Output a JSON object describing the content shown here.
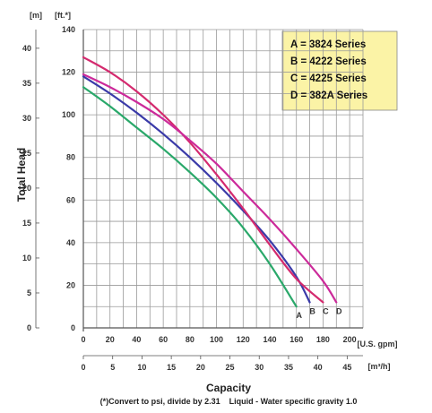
{
  "chart_data": {
    "type": "line",
    "title": "",
    "ylabel": "Total Head",
    "xlabel": "Capacity",
    "footnote": "(*)Convert to psi, divide by 2.31    Liquid - Water specific gravity 1.0",
    "y_unit_left": "[m]",
    "y_unit_right": "[ft.*]",
    "x_unit_primary": "[U.S. gpm]",
    "x_unit_secondary": "[m³/h]",
    "xlim": [
      0,
      210
    ],
    "ylim": [
      0,
      140
    ],
    "x_ticks_gpm": [
      "0",
      "20",
      "40",
      "60",
      "80",
      "100",
      "120",
      "140",
      "160",
      "180",
      "200"
    ],
    "x_ticks_m3h": [
      "0",
      "5",
      "10",
      "15",
      "20",
      "25",
      "30",
      "35",
      "40",
      "45"
    ],
    "y_ticks_ft": [
      "0",
      "20",
      "40",
      "60",
      "80",
      "100",
      "120",
      "140"
    ],
    "y_ticks_m": [
      "0",
      "5",
      "10",
      "15",
      "20",
      "25",
      "30",
      "35",
      "40"
    ],
    "grid": true,
    "legend_position": "top-right",
    "legend": [
      "A = 3824 Series",
      "B = 4222 Series",
      "C = 4225 Series",
      "D = 382A Series"
    ],
    "series": [
      {
        "name": "A",
        "color": "#2aa86a",
        "x": [
          0,
          20,
          40,
          60,
          80,
          100,
          120,
          140,
          160
        ],
        "y": [
          113,
          104,
          94,
          84,
          73,
          61,
          47,
          30,
          10
        ]
      },
      {
        "name": "B",
        "color": "#3a3aa8",
        "x": [
          0,
          20,
          40,
          60,
          80,
          100,
          120,
          140,
          160,
          170
        ],
        "y": [
          118,
          110,
          101,
          91,
          80,
          68,
          55,
          41,
          24,
          12
        ]
      },
      {
        "name": "C",
        "color": "#d42a6e",
        "x": [
          0,
          20,
          40,
          60,
          80,
          100,
          120,
          140,
          160,
          180
        ],
        "y": [
          127,
          120,
          111,
          100,
          87,
          72,
          56,
          39,
          23,
          12
        ]
      },
      {
        "name": "D",
        "color": "#cc2a9a",
        "x": [
          0,
          20,
          40,
          60,
          80,
          100,
          120,
          140,
          160,
          180,
          190
        ],
        "y": [
          119,
          113,
          106,
          98,
          88,
          77,
          64,
          51,
          37,
          22,
          12
        ]
      }
    ]
  }
}
